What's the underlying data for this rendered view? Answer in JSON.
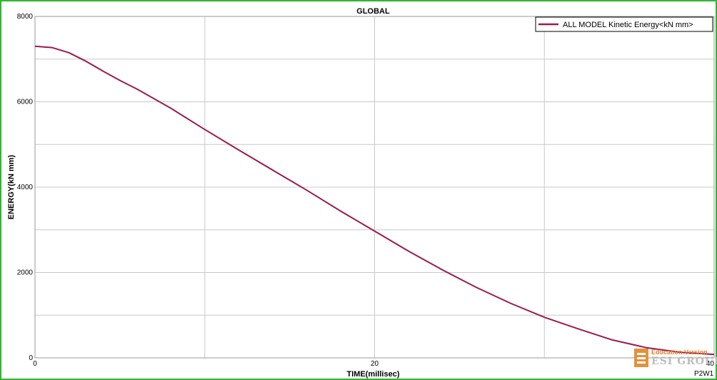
{
  "page_id": "P2W1",
  "watermark": {
    "top": "Education Version",
    "bottom": "ESI GROUP"
  },
  "chart_data": {
    "type": "line",
    "title": "GLOBAL",
    "xlabel": "TIME(millisec)",
    "ylabel": "ENERGY(kN mm)",
    "xlim": [
      0,
      40
    ],
    "ylim": [
      0,
      8000
    ],
    "x_ticks": [
      0,
      20,
      40
    ],
    "y_ticks": [
      0,
      2000,
      4000,
      6000,
      8000
    ],
    "grid": true,
    "legend_position": "top-right",
    "series": [
      {
        "name": "ALL MODEL Kinetic Energy<kN mm>",
        "color": "#9b1b4d",
        "x": [
          0,
          1,
          2,
          3,
          4,
          5,
          6,
          8,
          10,
          12,
          14,
          16,
          18,
          20,
          22,
          24,
          26,
          28,
          30,
          32,
          34,
          36,
          38,
          40
        ],
        "y": [
          7300,
          7270,
          7150,
          6950,
          6720,
          6500,
          6300,
          5850,
          5350,
          4870,
          4400,
          3930,
          3440,
          2970,
          2500,
          2060,
          1650,
          1280,
          950,
          680,
          420,
          240,
          130,
          80
        ]
      }
    ]
  }
}
